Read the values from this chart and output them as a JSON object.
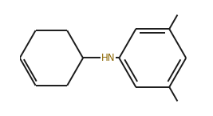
{
  "background": "#ffffff",
  "bond_color": "#1a1a1a",
  "hn_color": "#8B6500",
  "line_width": 1.4,
  "figsize": [
    2.67,
    1.45
  ],
  "dpi": 100,
  "xlim": [
    0.0,
    1.0
  ],
  "ylim": [
    0.0,
    1.0
  ]
}
